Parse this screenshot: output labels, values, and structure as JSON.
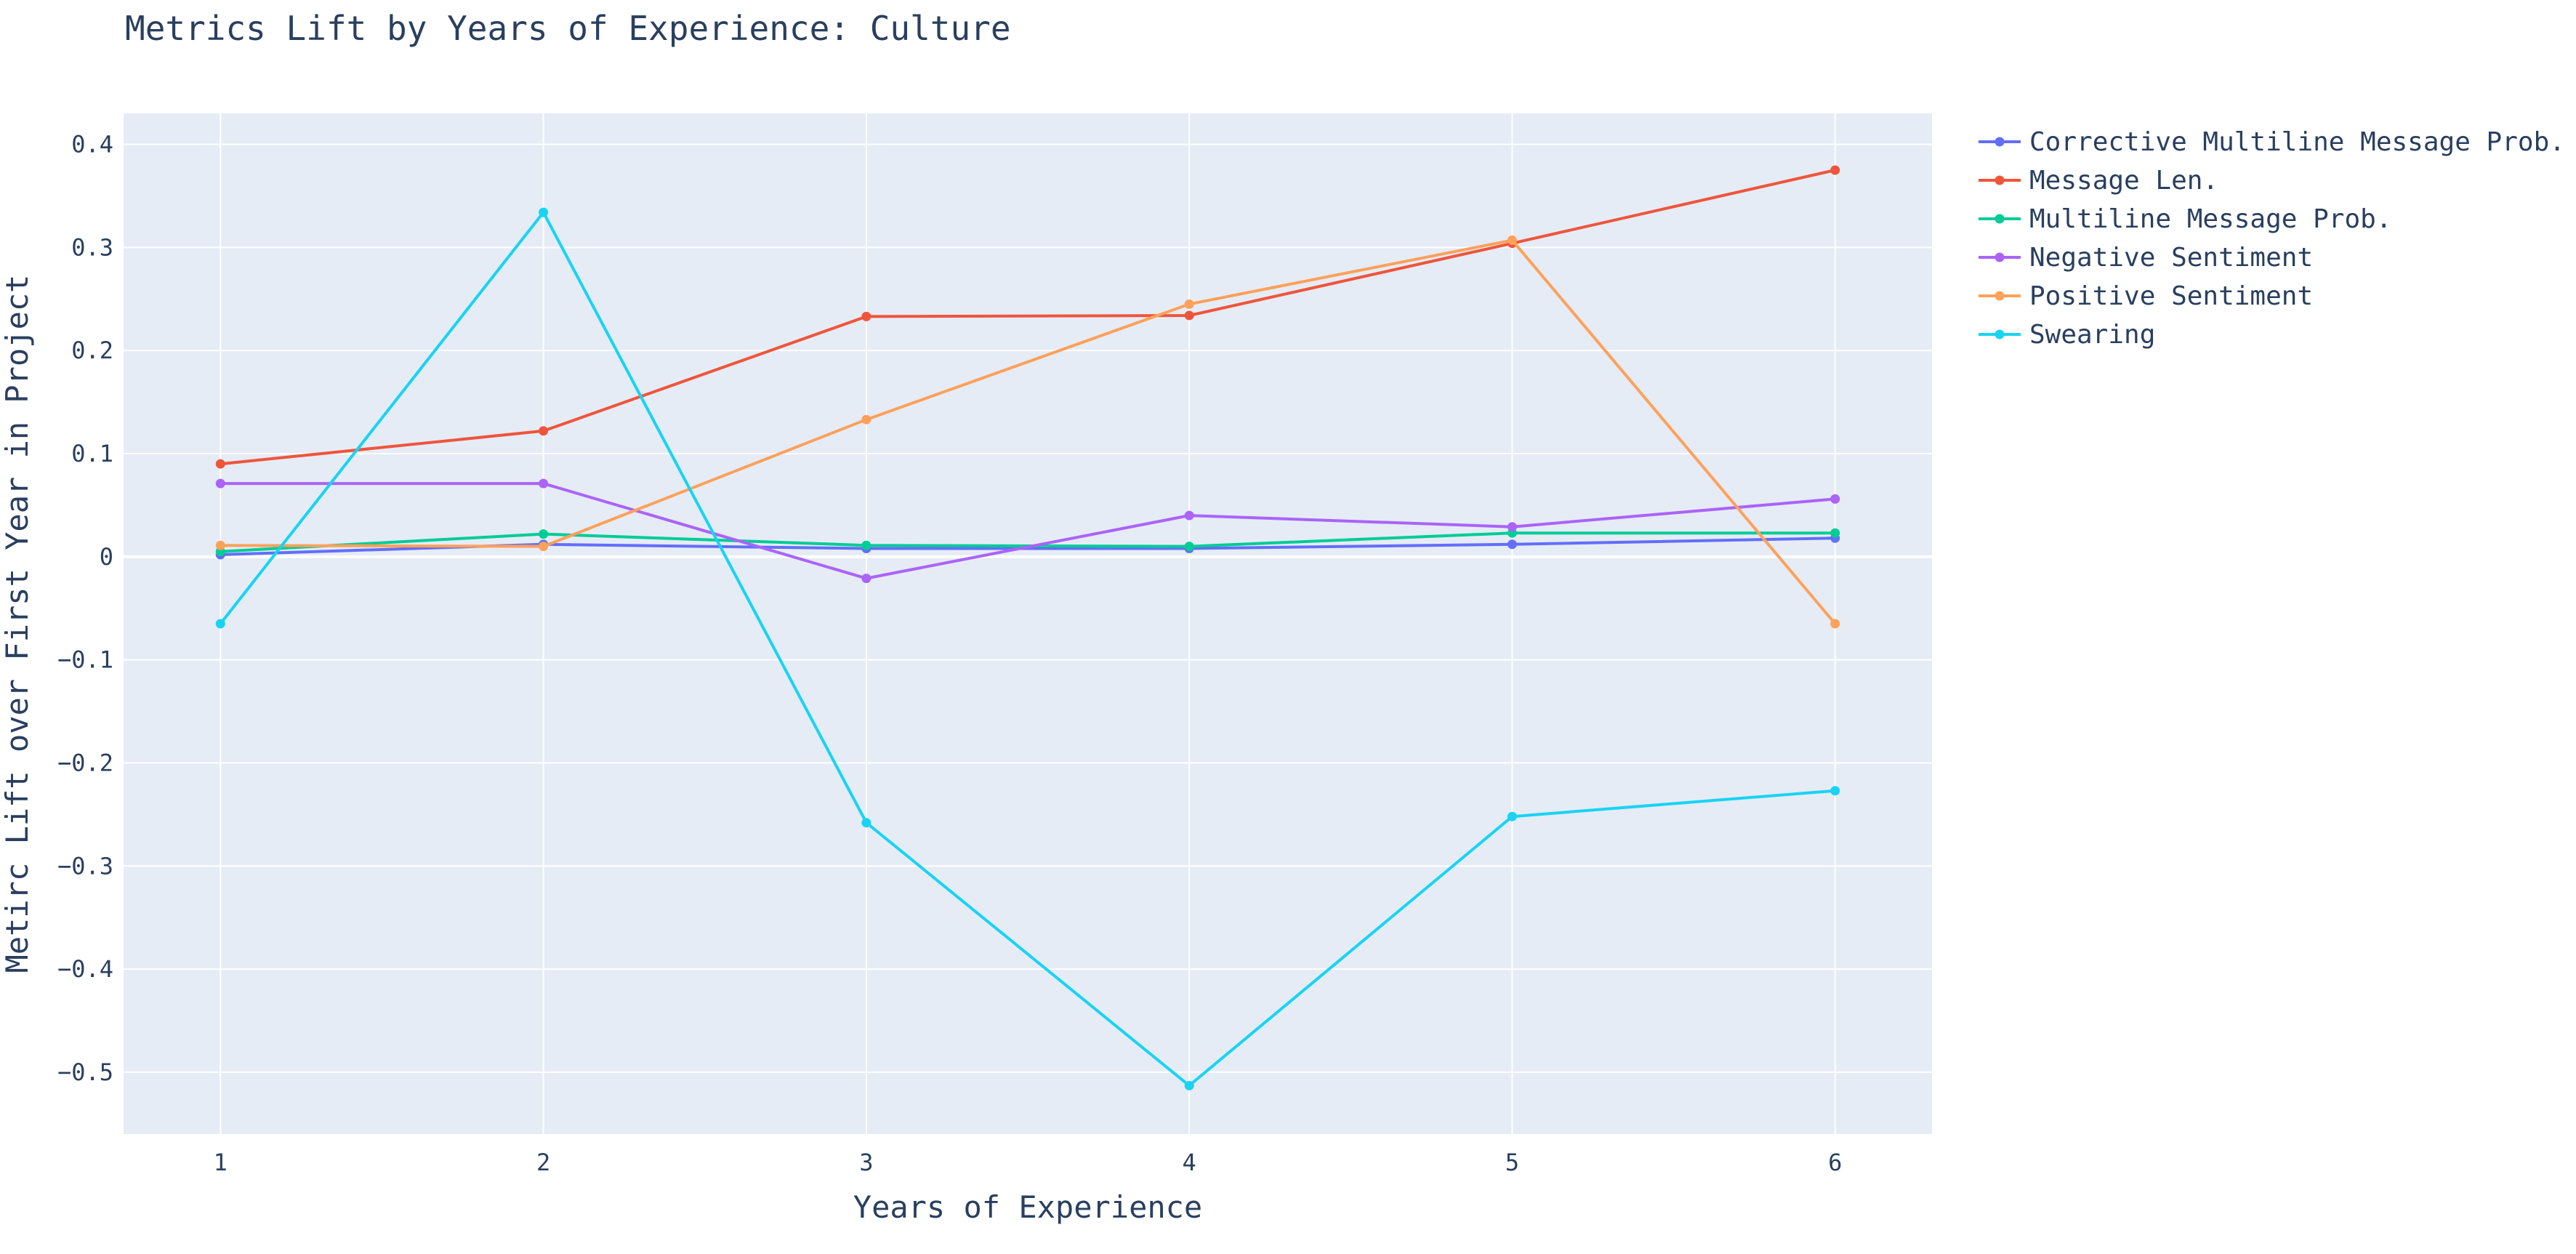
{
  "chart_data": {
    "type": "line",
    "title": "Metrics Lift by Years of Experience: Culture",
    "xlabel": "Years of Experience",
    "ylabel": "Metirc Lift over First Year in Project",
    "x": [
      1,
      2,
      3,
      4,
      5,
      6
    ],
    "xticks": [
      "1",
      "2",
      "3",
      "4",
      "5",
      "6"
    ],
    "xlim": [
      0.7,
      6.3
    ],
    "ylim": [
      -0.56,
      0.43
    ],
    "yticks": [
      0.4,
      0.3,
      0.2,
      0.1,
      0,
      -0.1,
      -0.2,
      -0.3,
      -0.4,
      -0.5
    ],
    "ytick_labels": [
      "0.4",
      "0.3",
      "0.2",
      "0.1",
      "0",
      "−0.1",
      "−0.2",
      "−0.3",
      "−0.4",
      "−0.5"
    ],
    "grid": true,
    "legend_position": "right",
    "plot_bg": "#e5ecf6",
    "series": [
      {
        "name": "Corrective Multiline Message Prob.",
        "color": "#636efa",
        "values": [
          0.002,
          0.012,
          0.008,
          0.008,
          0.012,
          0.018
        ]
      },
      {
        "name": "Message Len.",
        "color": "#ef553b",
        "values": [
          0.09,
          0.122,
          0.233,
          0.234,
          0.304,
          0.375
        ]
      },
      {
        "name": "Multiline Message Prob.",
        "color": "#00cc96",
        "values": [
          0.005,
          0.022,
          0.011,
          0.01,
          0.023,
          0.023
        ]
      },
      {
        "name": "Negative Sentiment",
        "color": "#ab63fa",
        "values": [
          0.071,
          0.071,
          -0.021,
          0.04,
          0.029,
          0.056
        ]
      },
      {
        "name": "Positive Sentiment",
        "color": "#ffa15a",
        "values": [
          0.011,
          0.01,
          0.133,
          0.245,
          0.307,
          -0.065
        ]
      },
      {
        "name": "Swearing",
        "color": "#19d3f3",
        "values": [
          -0.065,
          0.334,
          -0.258,
          -0.513,
          -0.252,
          -0.227
        ]
      }
    ]
  }
}
